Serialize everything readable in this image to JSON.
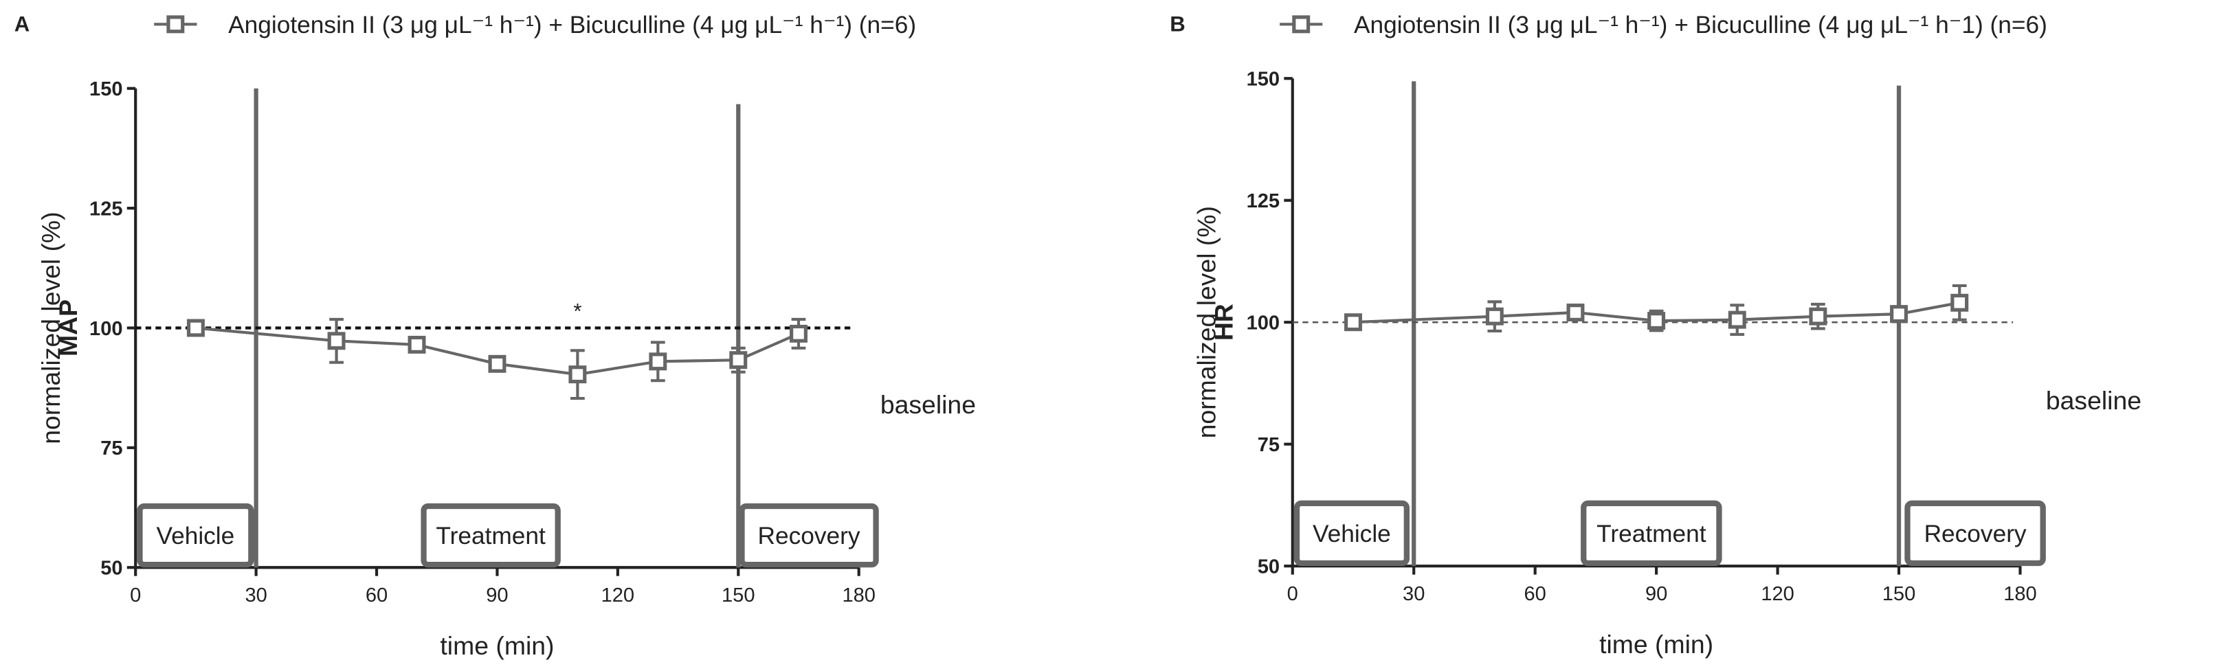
{
  "chart_data": [
    {
      "type": "line",
      "panel": "A",
      "y_label_bold": "MAP",
      "y_label": "normalized level (%)",
      "x_label": "time (min)",
      "x": [
        15,
        50,
        70,
        90,
        110,
        130,
        150,
        165
      ],
      "series": [
        {
          "name": "Angiotensin II (3 μg μL⁻¹ h⁻¹) + Bicuculline (4 μg μL⁻¹ h⁻¹)  (n=6)",
          "color": "#666666",
          "values": [
            100,
            97.3,
            96.5,
            92.5,
            90.3,
            93,
            93.3,
            98.8
          ],
          "errors": [
            0.5,
            4.5,
            1,
            1,
            5,
            4,
            2.5,
            3
          ]
        }
      ],
      "xlim": [
        0,
        180
      ],
      "ylim": [
        50,
        150
      ],
      "xticks": [
        0,
        30,
        60,
        90,
        120,
        150,
        180
      ],
      "yticks": [
        50,
        75,
        100,
        125,
        150
      ],
      "baseline": 100,
      "baseline_label": "baseline",
      "phase_lines": [
        30,
        150
      ],
      "phases": [
        "Vehicle",
        "Treatment",
        "Recovery"
      ],
      "annotations": [
        {
          "x": 110,
          "y": 105,
          "text": "*"
        }
      ]
    },
    {
      "type": "line",
      "panel": "B",
      "y_label_bold": "HR",
      "y_label": "normalized level (%)",
      "x_label": "time (min)",
      "x": [
        15,
        50,
        70,
        90,
        110,
        130,
        150,
        165
      ],
      "series": [
        {
          "name": "Angiotensin II (3 μg μL⁻¹ h⁻¹) + Bicuculline (4 μg μL⁻¹ h⁻1)  (n=6)",
          "color": "#666666",
          "values": [
            100,
            101.2,
            102,
            100.3,
            100.5,
            101.2,
            101.7,
            104
          ],
          "errors": [
            0.5,
            3,
            1,
            2,
            3,
            2.5,
            1.5,
            3.5
          ]
        }
      ],
      "xlim": [
        0,
        180
      ],
      "ylim": [
        50,
        150
      ],
      "xticks": [
        0,
        30,
        60,
        90,
        120,
        150,
        180
      ],
      "yticks": [
        50,
        75,
        100,
        125,
        150
      ],
      "baseline": 100,
      "baseline_label": "baseline",
      "phase_lines": [
        30,
        150
      ],
      "phases": [
        "Vehicle",
        "Treatment",
        "Recovery"
      ]
    }
  ]
}
